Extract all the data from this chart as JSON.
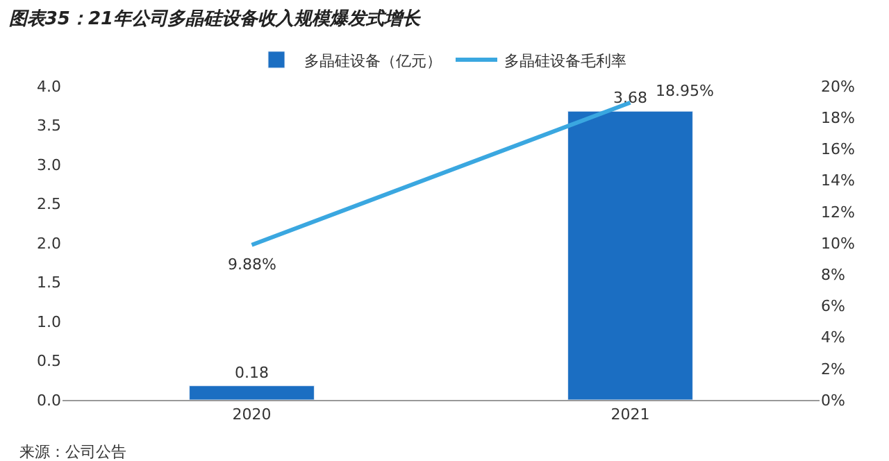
{
  "chart_data": {
    "type": "bar",
    "title": "图表35：21年公司多晶硅设备收入规模爆发式增长",
    "categories": [
      "2020",
      "2021"
    ],
    "series": [
      {
        "name": "多晶硅设备（亿元）",
        "color": "#1b6ec2",
        "values": [
          0.18,
          3.68
        ],
        "value_labels": [
          "0.18",
          "3.68"
        ]
      },
      {
        "name": "多晶硅设备毛利率",
        "type": "line",
        "axis": "y2",
        "color": "#3aa7e0",
        "values": [
          9.88,
          18.95
        ],
        "value_labels": [
          "9.88%",
          "18.95%"
        ]
      }
    ],
    "ylim": [
      0,
      4
    ],
    "yticks": [
      {
        "value": 0,
        "label": "0.0"
      },
      {
        "value": 0.5,
        "label": "0.5"
      },
      {
        "value": 1,
        "label": "1.0"
      },
      {
        "value": 1.5,
        "label": "1.5"
      },
      {
        "value": 2,
        "label": "2.0"
      },
      {
        "value": 2.5,
        "label": "2.5"
      },
      {
        "value": 3,
        "label": "3.0"
      },
      {
        "value": 3.5,
        "label": "3.5"
      },
      {
        "value": 4,
        "label": "4.0"
      }
    ],
    "y2lim": [
      0,
      20
    ],
    "y2ticks": [
      {
        "value": 0,
        "label": "0%"
      },
      {
        "value": 2,
        "label": "2%"
      },
      {
        "value": 4,
        "label": "4%"
      },
      {
        "value": 6,
        "label": "6%"
      },
      {
        "value": 8,
        "label": "8%"
      },
      {
        "value": 10,
        "label": "10%"
      },
      {
        "value": 12,
        "label": "12%"
      },
      {
        "value": 14,
        "label": "14%"
      },
      {
        "value": 16,
        "label": "16%"
      },
      {
        "value": 18,
        "label": "18%"
      },
      {
        "value": 20,
        "label": "20%"
      }
    ],
    "legend": "top",
    "marker": "none",
    "annotations": [
      "来源：公司公告"
    ]
  }
}
